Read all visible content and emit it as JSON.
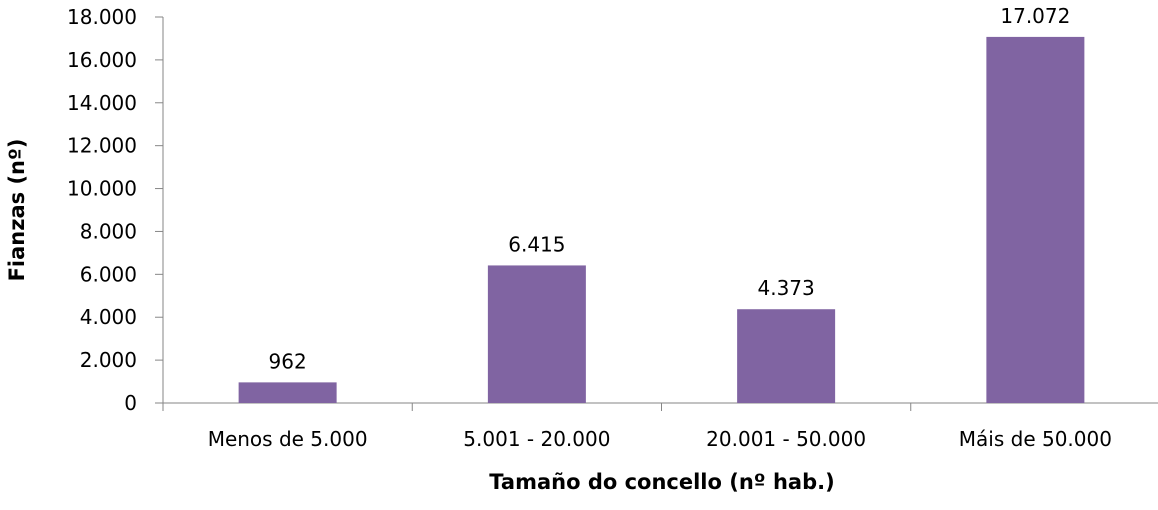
{
  "chart_data": {
    "type": "bar",
    "title": "",
    "xlabel": "Tamaño do concello (nº hab.)",
    "ylabel": "Fianzas (nº)",
    "categories": [
      "Menos de 5.000",
      "5.001 - 20.000",
      "20.001 - 50.000",
      "Máis de 50.000"
    ],
    "values": [
      962,
      6415,
      4373,
      17072
    ],
    "data_labels": [
      "962",
      "6.415",
      "4.373",
      "17.072"
    ],
    "ylim": [
      0,
      18000
    ],
    "yticks": [
      0,
      2000,
      4000,
      6000,
      8000,
      10000,
      12000,
      14000,
      16000,
      18000
    ],
    "ytick_labels": [
      "0",
      "2.000",
      "4.000",
      "6.000",
      "8.000",
      "10.000",
      "12.000",
      "14.000",
      "16.000",
      "18.000"
    ],
    "grid": false,
    "legend": "none",
    "colors": {
      "bar": "#8064A2",
      "axis": "#868686"
    }
  }
}
